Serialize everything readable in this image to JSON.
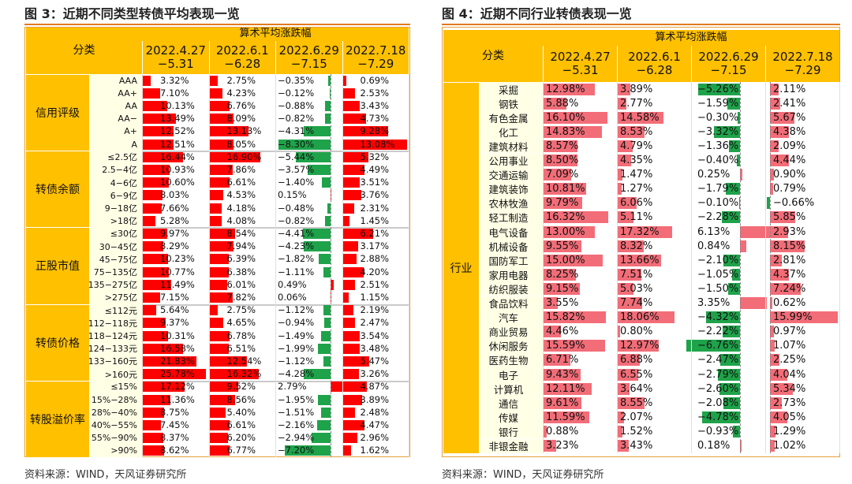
{
  "left": {
    "figure_title": "图 3：近期不同类型转债平均表现一览",
    "source": "资料来源：WIND，天风证券研究所",
    "header_top": "算术平均涨跌幅",
    "category_label": "分类",
    "periods": [
      "2022.4.27\n−5.31",
      "2022.6.1\n−6.28",
      "2022.6.29\n−7.15",
      "2022.7.18\n−7.29"
    ],
    "groups": [
      {
        "name": "信用评级",
        "rows": [
          {
            "label": "AAA",
            "values": [
              3.32,
              2.75,
              -0.35,
              0.69
            ],
            "texts": [
              "3.32%",
              "2.75%",
              "−0.35%",
              "0.69%"
            ]
          },
          {
            "label": "AA+",
            "values": [
              7.1,
              4.23,
              -0.12,
              2.53
            ],
            "texts": [
              "7.10%",
              "4.23%",
              "−0.12%",
              "2.53%"
            ]
          },
          {
            "label": "AA",
            "values": [
              10.13,
              6.76,
              -0.88,
              3.43
            ],
            "texts": [
              "10.13%",
              "6.76%",
              "−0.88%",
              "3.43%"
            ]
          },
          {
            "label": "AA−",
            "values": [
              13.49,
              8.09,
              -0.82,
              4.73
            ],
            "texts": [
              "13.49%",
              "8.09%",
              "−0.82%",
              "4.73%"
            ]
          },
          {
            "label": "A+",
            "values": [
              12.52,
              13.13,
              -4.31,
              9.28
            ],
            "texts": [
              "12.52%",
              "13.13%",
              "−4.31%",
              "9.28%"
            ]
          },
          {
            "label": "A",
            "values": [
              12.51,
              8.05,
              -8.3,
              13.08
            ],
            "texts": [
              "12.51%",
              "8.05%",
              "−8.30%",
              "13.08%"
            ]
          }
        ]
      },
      {
        "name": "转债余额",
        "rows": [
          {
            "label": "≤2.5亿",
            "values": [
              16.44,
              16.9,
              -5.44,
              5.32
            ],
            "texts": [
              "16.44%",
              "16.90%",
              "−5.44%",
              "5.32%"
            ]
          },
          {
            "label": "2.5−4亿",
            "values": [
              10.93,
              7.86,
              -3.57,
              4.49
            ],
            "texts": [
              "10.93%",
              "7.86%",
              "−3.57%",
              "4.49%"
            ]
          },
          {
            "label": "4−6亿",
            "values": [
              10.6,
              6.61,
              -1.4,
              3.51
            ],
            "texts": [
              "10.60%",
              "6.61%",
              "−1.40%",
              "3.51%"
            ]
          },
          {
            "label": "6−9亿",
            "values": [
              8.03,
              4.53,
              0.15,
              3.76
            ],
            "texts": [
              "8.03%",
              "4.53%",
              "0.15%",
              "3.76%"
            ]
          },
          {
            "label": "9−18亿",
            "values": [
              7.66,
              4.18,
              -0.48,
              2.31
            ],
            "texts": [
              "7.66%",
              "4.18%",
              "−0.48%",
              "2.31%"
            ]
          },
          {
            "label": ">18亿",
            "values": [
              5.28,
              4.08,
              -0.82,
              1.45
            ],
            "texts": [
              "5.28%",
              "4.08%",
              "−0.82%",
              "1.45%"
            ]
          }
        ]
      },
      {
        "name": "正股市值",
        "rows": [
          {
            "label": "≤30亿",
            "values": [
              9.97,
              8.54,
              -4.41,
              6.21
            ],
            "texts": [
              "9.97%",
              "8.54%",
              "−4.41%",
              "6.21%"
            ]
          },
          {
            "label": "30−45亿",
            "values": [
              8.29,
              7.94,
              -4.23,
              3.17
            ],
            "texts": [
              "8.29%",
              "7.94%",
              "−4.23%",
              "3.17%"
            ]
          },
          {
            "label": "45−75亿",
            "values": [
              10.23,
              6.39,
              -1.82,
              2.88
            ],
            "texts": [
              "10.23%",
              "6.39%",
              "−1.82%",
              "2.88%"
            ]
          },
          {
            "label": "75−135亿",
            "values": [
              10.77,
              6.38,
              -1.11,
              4.2
            ],
            "texts": [
              "10.77%",
              "6.38%",
              "−1.11%",
              "4.20%"
            ]
          },
          {
            "label": "135−275亿",
            "values": [
              11.49,
              6.01,
              0.49,
              2.51
            ],
            "texts": [
              "11.49%",
              "6.01%",
              "0.49%",
              "2.51%"
            ]
          },
          {
            "label": ">275亿",
            "values": [
              7.15,
              7.82,
              0.06,
              1.15
            ],
            "texts": [
              "7.15%",
              "7.82%",
              "0.06%",
              "1.15%"
            ]
          }
        ]
      },
      {
        "name": "转债价格",
        "rows": [
          {
            "label": "≤112元",
            "values": [
              5.64,
              2.75,
              -1.12,
              2.19
            ],
            "texts": [
              "5.64%",
              "2.75%",
              "−1.12%",
              "2.19%"
            ]
          },
          {
            "label": "112−118元",
            "values": [
              9.37,
              4.65,
              -0.94,
              2.47
            ],
            "texts": [
              "9.37%",
              "4.65%",
              "−0.94%",
              "2.47%"
            ]
          },
          {
            "label": "118−124元",
            "values": [
              10.31,
              6.78,
              -1.49,
              3.54
            ],
            "texts": [
              "10.31%",
              "6.78%",
              "−1.49%",
              "3.54%"
            ]
          },
          {
            "label": "124−133元",
            "values": [
              16.58,
              6.51,
              -1.99,
              3.48
            ],
            "texts": [
              "16.58%",
              "6.51%",
              "−1.99%",
              "3.48%"
            ]
          },
          {
            "label": "133−160元",
            "values": [
              21.83,
              12.54,
              -1.12,
              5.47
            ],
            "texts": [
              "21.83%",
              "12.54%",
              "−1.12%",
              "5.47%"
            ]
          },
          {
            "label": ">160元",
            "values": [
              25.78,
              16.32,
              -4.28,
              3.26
            ],
            "texts": [
              "25.78%",
              "16.32%",
              "−4.28%",
              "3.26%"
            ]
          }
        ]
      },
      {
        "name": "转股溢价率",
        "rows": [
          {
            "label": "≤15%",
            "values": [
              17.12,
              9.52,
              2.79,
              4.87
            ],
            "texts": [
              "17.12%",
              "9.52%",
              "2.79%",
              "4.87%"
            ]
          },
          {
            "label": "15%−28%",
            "values": [
              11.36,
              8.56,
              -1.95,
              3.89
            ],
            "texts": [
              "11.36%",
              "8.56%",
              "−1.95%",
              "3.89%"
            ]
          },
          {
            "label": "28%−40%",
            "values": [
              8.75,
              5.4,
              -1.51,
              2.48
            ],
            "texts": [
              "8.75%",
              "5.40%",
              "−1.51%",
              "2.48%"
            ]
          },
          {
            "label": "40%−55%",
            "values": [
              7.45,
              6.61,
              -2.16,
              4.47
            ],
            "texts": [
              "7.45%",
              "6.61%",
              "−2.16%",
              "4.47%"
            ]
          },
          {
            "label": "55%−90%",
            "values": [
              8.37,
              6.2,
              -2.94,
              2.96
            ],
            "texts": [
              "8.37%",
              "6.20%",
              "−2.94%",
              "2.96%"
            ]
          },
          {
            "label": ">90%",
            "values": [
              8.62,
              6.77,
              -7.2,
              1.62
            ],
            "texts": [
              "8.62%",
              "6.77%",
              "−7.20%",
              "1.62%"
            ]
          }
        ]
      }
    ]
  },
  "right": {
    "figure_title": "图 4：近期不同行业转债表现一览",
    "source": "资料来源：WIND，天风证券研究所",
    "header_top": "算术平均涨跌幅",
    "category_label": "分类",
    "group_name": "行业",
    "periods": [
      "2022.4.27\n−5.31",
      "2022.6.1\n−6.28",
      "2022.6.29\n−7.15",
      "2022.7.18\n−7.29"
    ],
    "rows": [
      {
        "label": "采掘",
        "values": [
          12.98,
          3.89,
          -5.26,
          2.11
        ],
        "texts": [
          "12.98%",
          "3.89%",
          "−5.26%",
          "2.11%"
        ]
      },
      {
        "label": "钢铁",
        "values": [
          5.88,
          2.77,
          -1.59,
          2.41
        ],
        "texts": [
          "5.88%",
          "2.77%",
          "−1.59%",
          "2.41%"
        ]
      },
      {
        "label": "有色金属",
        "values": [
          16.1,
          14.58,
          -0.3,
          5.67
        ],
        "texts": [
          "16.10%",
          "14.58%",
          "−0.30%",
          "5.67%"
        ]
      },
      {
        "label": "化工",
        "values": [
          14.83,
          8.53,
          -3.32,
          4.38
        ],
        "texts": [
          "14.83%",
          "8.53%",
          "−3.32%",
          "4.38%"
        ]
      },
      {
        "label": "建筑材料",
        "values": [
          8.57,
          4.79,
          -1.36,
          2.09
        ],
        "texts": [
          "8.57%",
          "4.79%",
          "−1.36%",
          "2.09%"
        ]
      },
      {
        "label": "公用事业",
        "values": [
          8.5,
          4.35,
          -0.4,
          4.44
        ],
        "texts": [
          "8.50%",
          "4.35%",
          "−0.40%",
          "4.44%"
        ]
      },
      {
        "label": "交通运输",
        "values": [
          7.09,
          1.47,
          0.25,
          0.9
        ],
        "texts": [
          "7.09%",
          "1.47%",
          "0.25%",
          "0.90%"
        ]
      },
      {
        "label": "建筑装饰",
        "values": [
          10.81,
          1.27,
          -1.79,
          0.79
        ],
        "texts": [
          "10.81%",
          "1.27%",
          "−1.79%",
          "0.79%"
        ]
      },
      {
        "label": "农林牧渔",
        "values": [
          9.79,
          6.06,
          -0.1,
          -0.66
        ],
        "texts": [
          "9.79%",
          "6.06%",
          "−0.10%",
          "−0.66%"
        ]
      },
      {
        "label": "轻工制造",
        "values": [
          16.32,
          5.11,
          -2.28,
          5.85
        ],
        "texts": [
          "16.32%",
          "5.11%",
          "−2.28%",
          "5.85%"
        ]
      },
      {
        "label": "电气设备",
        "values": [
          13.0,
          17.32,
          6.13,
          2.93
        ],
        "texts": [
          "13.00%",
          "17.32%",
          "6.13%",
          "2.93%"
        ]
      },
      {
        "label": "机械设备",
        "values": [
          9.55,
          8.32,
          0.84,
          8.15
        ],
        "texts": [
          "9.55%",
          "8.32%",
          "0.84%",
          "8.15%"
        ]
      },
      {
        "label": "国防军工",
        "values": [
          15.0,
          13.66,
          -2.1,
          2.81
        ],
        "texts": [
          "15.00%",
          "13.66%",
          "−2.10%",
          "2.81%"
        ]
      },
      {
        "label": "家用电器",
        "values": [
          8.25,
          7.51,
          -1.05,
          4.37
        ],
        "texts": [
          "8.25%",
          "7.51%",
          "−1.05%",
          "4.37%"
        ]
      },
      {
        "label": "纺织服装",
        "values": [
          9.15,
          5.03,
          -1.5,
          7.24
        ],
        "texts": [
          "9.15%",
          "5.03%",
          "−1.50%",
          "7.24%"
        ]
      },
      {
        "label": "食品饮料",
        "values": [
          3.55,
          7.74,
          3.35,
          0.62
        ],
        "texts": [
          "3.55%",
          "7.74%",
          "3.35%",
          "0.62%"
        ]
      },
      {
        "label": "汽车",
        "values": [
          15.82,
          18.06,
          -4.32,
          15.99
        ],
        "texts": [
          "15.82%",
          "18.06%",
          "−4.32%",
          "15.99%"
        ]
      },
      {
        "label": "商业贸易",
        "values": [
          4.46,
          0.8,
          -2.22,
          0.97
        ],
        "texts": [
          "4.46%",
          "0.80%",
          "−2.22%",
          "0.97%"
        ]
      },
      {
        "label": "休闲服务",
        "values": [
          15.59,
          12.97,
          -6.76,
          1.07
        ],
        "texts": [
          "15.59%",
          "12.97%",
          "−6.76%",
          "1.07%"
        ]
      },
      {
        "label": "医药生物",
        "values": [
          6.71,
          6.88,
          -2.47,
          2.25
        ],
        "texts": [
          "6.71%",
          "6.88%",
          "−2.47%",
          "2.25%"
        ]
      },
      {
        "label": "电子",
        "values": [
          9.43,
          6.55,
          -2.79,
          4.04
        ],
        "texts": [
          "9.43%",
          "6.55%",
          "−2.79%",
          "4.04%"
        ]
      },
      {
        "label": "计算机",
        "values": [
          12.11,
          3.64,
          -2.6,
          5.34
        ],
        "texts": [
          "12.11%",
          "3.64%",
          "−2.60%",
          "5.34%"
        ]
      },
      {
        "label": "通信",
        "values": [
          9.61,
          8.55,
          -2.08,
          2.73
        ],
        "texts": [
          "9.61%",
          "8.55%",
          "−2.08%",
          "2.73%"
        ]
      },
      {
        "label": "传媒",
        "values": [
          11.59,
          2.07,
          -4.78,
          4.05
        ],
        "texts": [
          "11.59%",
          "2.07%",
          "−4.78%",
          "4.05%"
        ]
      },
      {
        "label": "银行",
        "values": [
          0.88,
          1.52,
          -0.93,
          1.29
        ],
        "texts": [
          "0.88%",
          "1.52%",
          "−0.93%",
          "1.29%"
        ]
      },
      {
        "label": "非银金融",
        "values": [
          3.23,
          3.43,
          0.18,
          1.02
        ],
        "texts": [
          "3.23%",
          "3.43%",
          "0.18%",
          "1.02%"
        ]
      }
    ]
  },
  "colors": {
    "positive": "#ff0000",
    "positive_light": "#f26d78",
    "negative": "#1fa34a",
    "header": "#ffc000",
    "label_bg": "#ffffe6",
    "accent": "#e07a1f"
  }
}
